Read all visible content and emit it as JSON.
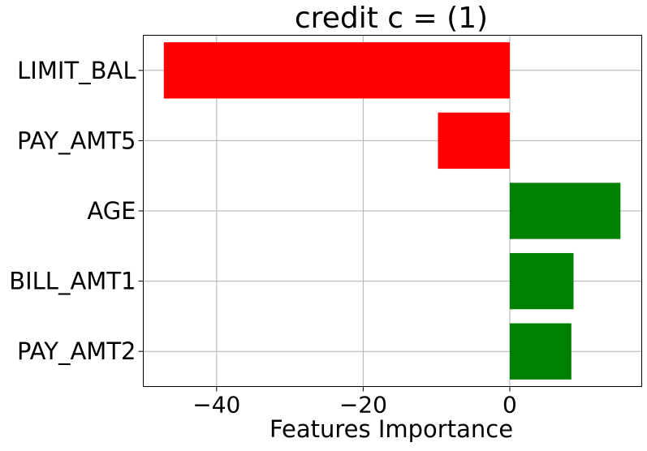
{
  "chart_data": {
    "type": "bar",
    "orientation": "horizontal",
    "title": "credit c = (1)",
    "xlabel": "Features Importance",
    "ylabel": "",
    "categories": [
      "LIMIT_BAL",
      "PAY_AMT5",
      "AGE",
      "BILL_AMT1",
      "PAY_AMT2"
    ],
    "values": [
      -47.2,
      -9.8,
      15.1,
      8.7,
      8.4
    ],
    "xlim": [
      -50,
      18
    ],
    "xticks": [
      -40,
      -20,
      0
    ],
    "xtick_labels": [
      "−40",
      "−20",
      "0"
    ],
    "grid": true,
    "colors": {
      "negative": "#ff0000",
      "positive": "#008000"
    }
  }
}
